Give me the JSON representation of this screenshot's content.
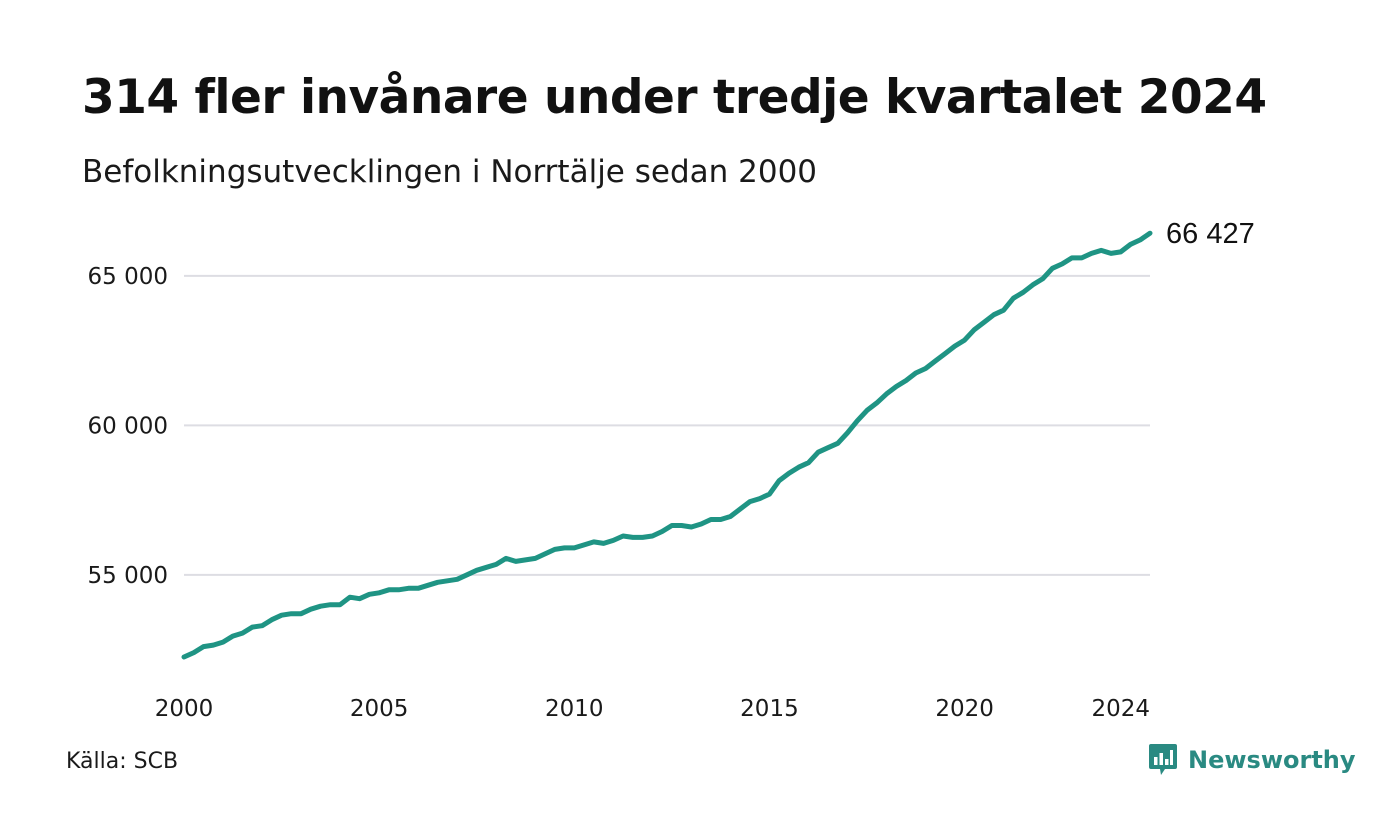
{
  "header": {
    "title": "314 fler invånare under tredje kvartalet 2024",
    "subtitle": "Befolkningsutvecklingen i Norrtälje sedan 2000"
  },
  "footer": {
    "source": "Källa: SCB",
    "brand": "Newsworthy"
  },
  "colors": {
    "line": "#1f9484",
    "grid": "#dddde3",
    "brand": "#2a8a82"
  },
  "icons": {
    "brand_logo": "newsworthy-logo-icon"
  },
  "chart_data": {
    "type": "line",
    "title": "314 fler invånare under tredje kvartalet 2024",
    "subtitle": "Befolkningsutvecklingen i Norrtälje sedan 2000",
    "xlabel": "",
    "ylabel": "",
    "xlim": [
      2000.0,
      2024.75
    ],
    "ylim": [
      51750,
      66800
    ],
    "x_ticks": [
      2000,
      2005,
      2010,
      2015,
      2020,
      2024
    ],
    "x_tick_labels": [
      "2000",
      "2005",
      "2010",
      "2015",
      "2020",
      "2024"
    ],
    "y_ticks": [
      55000,
      60000,
      65000
    ],
    "y_tick_labels": [
      "55 000",
      "60 000",
      "65 000"
    ],
    "grid": "horizontal",
    "legend": "none",
    "end_label": "66 427",
    "series": [
      {
        "x": [
          2000.0,
          2000.25,
          2000.5,
          2000.75,
          2001.0,
          2001.25,
          2001.5,
          2001.75,
          2002.0,
          2002.25,
          2002.5,
          2002.75,
          2003.0,
          2003.25,
          2003.5,
          2003.75,
          2004.0,
          2004.25,
          2004.5,
          2004.75,
          2005.0,
          2005.25,
          2005.5,
          2005.75,
          2006.0,
          2006.25,
          2006.5,
          2006.75,
          2007.0,
          2007.25,
          2007.5,
          2007.75,
          2008.0,
          2008.25,
          2008.5,
          2008.75,
          2009.0,
          2009.25,
          2009.5,
          2009.75,
          2010.0,
          2010.25,
          2010.5,
          2010.75,
          2011.0,
          2011.25,
          2011.5,
          2011.75,
          2012.0,
          2012.25,
          2012.5,
          2012.75,
          2013.0,
          2013.25,
          2013.5,
          2013.75,
          2014.0,
          2014.25,
          2014.5,
          2014.75,
          2015.0,
          2015.25,
          2015.5,
          2015.75,
          2016.0,
          2016.25,
          2016.5,
          2016.75,
          2017.0,
          2017.25,
          2017.5,
          2017.75,
          2018.0,
          2018.25,
          2018.5,
          2018.75,
          2019.0,
          2019.25,
          2019.5,
          2019.75,
          2020.0,
          2020.25,
          2020.5,
          2020.75,
          2021.0,
          2021.25,
          2021.5,
          2021.75,
          2022.0,
          2022.25,
          2022.5,
          2022.75,
          2023.0,
          2023.25,
          2023.5,
          2023.75,
          2024.0,
          2024.25,
          2024.5,
          2024.75
        ],
        "values": [
          52250,
          52400,
          52600,
          52650,
          52750,
          52950,
          53050,
          53250,
          53300,
          53500,
          53650,
          53700,
          53700,
          53850,
          53950,
          54000,
          54000,
          54250,
          54200,
          54350,
          54400,
          54500,
          54500,
          54550,
          54550,
          54650,
          54750,
          54800,
          54850,
          55000,
          55150,
          55250,
          55350,
          55550,
          55450,
          55500,
          55550,
          55700,
          55850,
          55900,
          55900,
          56000,
          56100,
          56050,
          56150,
          56300,
          56250,
          56250,
          56300,
          56450,
          56650,
          56650,
          56600,
          56700,
          56850,
          56850,
          56950,
          57200,
          57450,
          57550,
          57700,
          58150,
          58400,
          58600,
          58750,
          59100,
          59250,
          59400,
          59750,
          60150,
          60500,
          60750,
          61050,
          61300,
          61500,
          61750,
          61900,
          62150,
          62400,
          62650,
          62850,
          63200,
          63450,
          63700,
          63850,
          64250,
          64450,
          64700,
          64900,
          65250,
          65400,
          65600,
          65600,
          65750,
          65850,
          65750,
          65800,
          66050,
          66200,
          66427
        ]
      }
    ]
  }
}
